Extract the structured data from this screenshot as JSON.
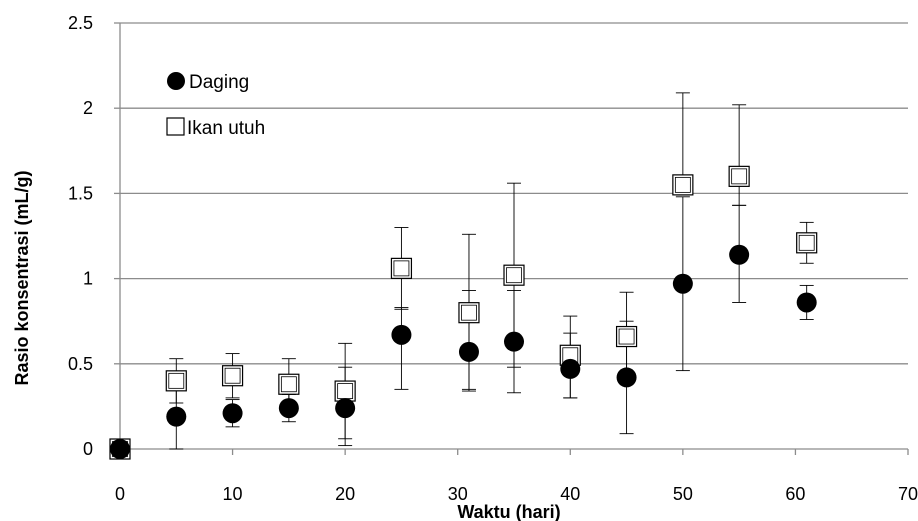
{
  "chart_data": {
    "type": "scatter",
    "title": "",
    "xlabel": "Waktu (hari)",
    "ylabel": "Rasio konsentrasi (mL/g)",
    "xlim": [
      0,
      70
    ],
    "ylim": [
      0,
      2.5
    ],
    "xticks": [
      "0",
      "10",
      "20",
      "30",
      "40",
      "50",
      "60",
      "70"
    ],
    "yticks": [
      "0",
      "0.5",
      "1",
      "1.5",
      "2",
      "2.5"
    ],
    "grid": "horizontal",
    "legend_position": "top-left",
    "series": [
      {
        "name": "Daging",
        "marker": "filled-circle",
        "color": "#000000",
        "points": [
          {
            "x": 0,
            "y": 0,
            "err_lo": 0,
            "err_hi": 0
          },
          {
            "x": 5,
            "y": 0.19,
            "err_lo": 0.19,
            "err_hi": 0.19
          },
          {
            "x": 10,
            "y": 0.21,
            "err_lo": 0.08,
            "err_hi": 0.08
          },
          {
            "x": 15,
            "y": 0.24,
            "err_lo": 0.08,
            "err_hi": 0.08
          },
          {
            "x": 20,
            "y": 0.24,
            "err_lo": 0.22,
            "err_hi": 0.24
          },
          {
            "x": 25,
            "y": 0.67,
            "err_lo": 0.32,
            "err_hi": 0.16
          },
          {
            "x": 31,
            "y": 0.57,
            "err_lo": 0.22,
            "err_hi": 0.36
          },
          {
            "x": 35,
            "y": 0.63,
            "err_lo": 0.3,
            "err_hi": 0.3
          },
          {
            "x": 40,
            "y": 0.47,
            "err_lo": 0.17,
            "err_hi": 0.21
          },
          {
            "x": 45,
            "y": 0.42,
            "err_lo": 0.33,
            "err_hi": 0.33
          },
          {
            "x": 50,
            "y": 0.97,
            "err_lo": 0.51,
            "err_hi": 0.51
          },
          {
            "x": 55,
            "y": 1.14,
            "err_lo": 0.28,
            "err_hi": 0.29
          },
          {
            "x": 61,
            "y": 0.86,
            "err_lo": 0.1,
            "err_hi": 0.1
          }
        ]
      },
      {
        "name": "Ikan utuh",
        "marker": "open-square",
        "color": "#000000",
        "points": [
          {
            "x": 0,
            "y": 0,
            "err_lo": 0,
            "err_hi": 0
          },
          {
            "x": 5,
            "y": 0.4,
            "err_lo": 0.13,
            "err_hi": 0.13
          },
          {
            "x": 10,
            "y": 0.43,
            "err_lo": 0.13,
            "err_hi": 0.13
          },
          {
            "x": 15,
            "y": 0.38,
            "err_lo": 0.15,
            "err_hi": 0.15
          },
          {
            "x": 20,
            "y": 0.34,
            "err_lo": 0.28,
            "err_hi": 0.28
          },
          {
            "x": 25,
            "y": 1.06,
            "err_lo": 0.24,
            "err_hi": 0.24
          },
          {
            "x": 31,
            "y": 0.8,
            "err_lo": 0.46,
            "err_hi": 0.46
          },
          {
            "x": 35,
            "y": 1.02,
            "err_lo": 0.54,
            "err_hi": 0.54
          },
          {
            "x": 40,
            "y": 0.55,
            "err_lo": 0.25,
            "err_hi": 0.23
          },
          {
            "x": 45,
            "y": 0.66,
            "err_lo": 0.26,
            "err_hi": 0.26
          },
          {
            "x": 50,
            "y": 1.55,
            "err_lo": 0.06,
            "err_hi": 0.54
          },
          {
            "x": 55,
            "y": 1.6,
            "err_lo": 0.17,
            "err_hi": 0.42
          },
          {
            "x": 61,
            "y": 1.21,
            "err_lo": 0.12,
            "err_hi": 0.12
          }
        ]
      }
    ]
  }
}
